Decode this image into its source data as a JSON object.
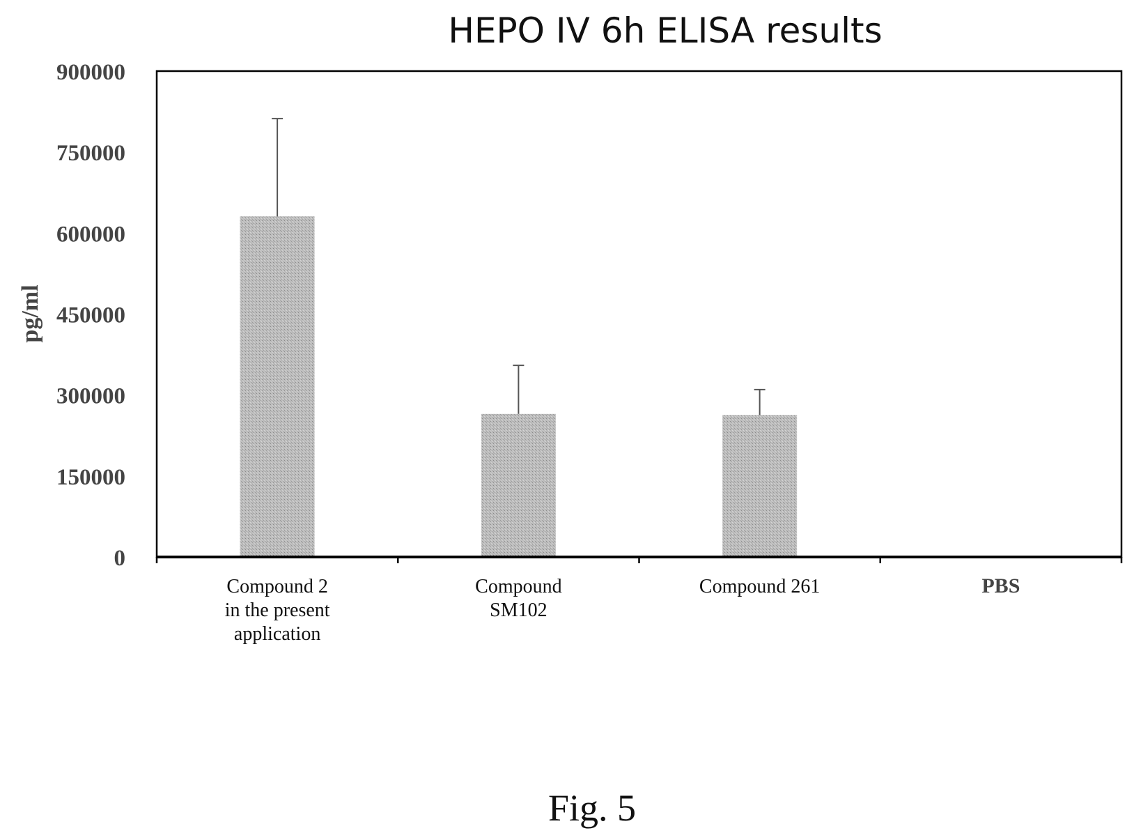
{
  "chart_data": {
    "type": "bar",
    "title": "HEPO IV 6h ELISA results",
    "ylabel": "pg/ml",
    "xlabel": "",
    "categories": [
      [
        "Compound 2",
        "in the present",
        "application"
      ],
      [
        "Compound",
        "SM102"
      ],
      [
        "Compound 261"
      ],
      [
        "PBS"
      ]
    ],
    "values": [
      631000,
      265000,
      263000,
      1500
    ],
    "error_upper": [
      812000,
      355000,
      310000,
      1500
    ],
    "ylim": [
      0,
      900000
    ],
    "yticks": [
      0,
      150000,
      300000,
      450000,
      600000,
      750000,
      900000
    ],
    "ytick_labels": [
      "0",
      "150000",
      "300000",
      "450000",
      "600000",
      "750000",
      "900000"
    ],
    "grid": false,
    "legend": "none",
    "bar_color": "#b8b8b8",
    "axis_color": "#000000"
  },
  "figure": {
    "caption": "Fig. 5"
  }
}
